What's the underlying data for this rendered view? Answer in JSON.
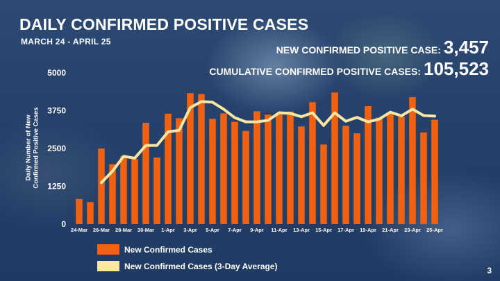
{
  "slide": {
    "title": "DAILY CONFIRMED POSITIVE CASES",
    "subtitle": "MARCH 24 - APRIL 25",
    "new_cases_label": "NEW CONFIRMED POSITIVE CASE:",
    "new_cases_value": "3,457",
    "cumulative_label": "CUMULATIVE CONFIRMED POSITIVE CASES:",
    "cumulative_value": "105,523",
    "page_number": "3"
  },
  "colors": {
    "bar": "#f0620f",
    "line": "#fbe7a1",
    "background": "#25406a"
  },
  "chart_data": {
    "type": "bar",
    "title": "DAILY CONFIRMED POSITIVE CASES",
    "ylabel": "Daily Number of New Confirmed Positive Cases",
    "xlabel": "",
    "ylim": [
      0,
      5000
    ],
    "yticks": [
      0,
      1250,
      2500,
      3750,
      5000
    ],
    "x_tick_labels": [
      "24-Mar",
      "26-Mar",
      "28-Mar",
      "30-Mar",
      "1-Apr",
      "3-Apr",
      "5-Apr",
      "7-Apr",
      "9-Apr",
      "11-Apr",
      "13-Apr",
      "15-Apr",
      "17-Apr",
      "19-Apr",
      "21-Apr",
      "23-Apr",
      "25-Apr"
    ],
    "categories": [
      "24-Mar",
      "25-Mar",
      "26-Mar",
      "27-Mar",
      "28-Mar",
      "29-Mar",
      "30-Mar",
      "31-Mar",
      "1-Apr",
      "2-Apr",
      "3-Apr",
      "4-Apr",
      "5-Apr",
      "6-Apr",
      "7-Apr",
      "8-Apr",
      "9-Apr",
      "10-Apr",
      "11-Apr",
      "12-Apr",
      "13-Apr",
      "14-Apr",
      "15-Apr",
      "16-Apr",
      "17-Apr",
      "18-Apr",
      "19-Apr",
      "20-Apr",
      "21-Apr",
      "22-Apr",
      "23-Apr",
      "24-Apr",
      "25-Apr"
    ],
    "series": [
      {
        "name": "New Confirmed Cases",
        "type": "bar",
        "values": [
          830,
          730,
          2500,
          1980,
          2250,
          2150,
          3350,
          2200,
          3650,
          3500,
          4330,
          4300,
          3480,
          3660,
          3380,
          3080,
          3730,
          3620,
          3650,
          3720,
          3230,
          4030,
          2630,
          4350,
          3250,
          3000,
          3900,
          3520,
          3650,
          3550,
          4200,
          3030,
          3450
        ]
      },
      {
        "name": "New Confirmed Cases (3-Day Average)",
        "type": "line",
        "values": [
          null,
          null,
          1370,
          1750,
          2240,
          2180,
          2600,
          2600,
          3050,
          3100,
          3850,
          4050,
          4030,
          3800,
          3520,
          3380,
          3380,
          3430,
          3680,
          3660,
          3550,
          3680,
          3260,
          3680,
          3400,
          3530,
          3380,
          3470,
          3700,
          3580,
          3800,
          3590,
          3570
        ]
      }
    ],
    "legend": [
      {
        "label": "New Confirmed Cases",
        "kind": "bar"
      },
      {
        "label": "New Confirmed Cases (3-Day Average)",
        "kind": "line"
      }
    ],
    "legend_position": "bottom-left",
    "grid": false
  }
}
